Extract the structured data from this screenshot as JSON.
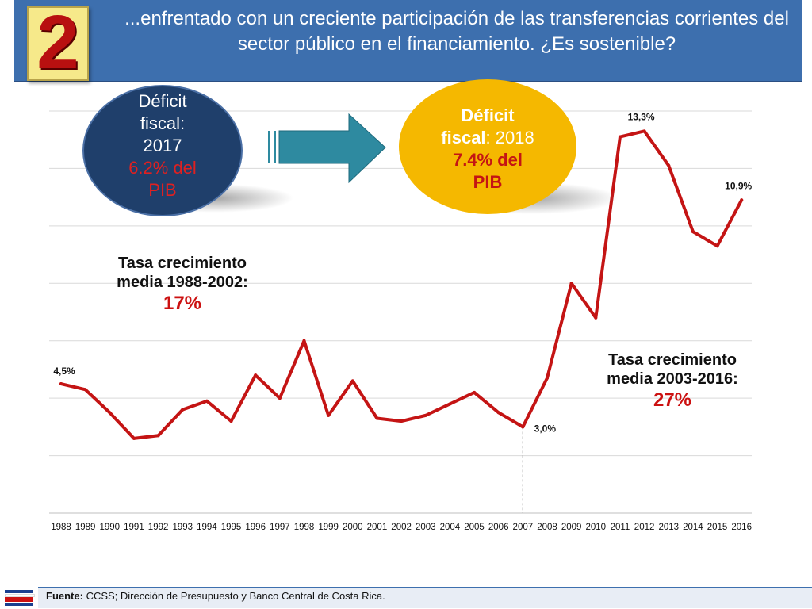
{
  "slide": {
    "badge_number": "2",
    "title": "...enfrentado con un creciente participación de las transferencias corrientes del sector público en el financiamiento.  ¿Es sostenible?",
    "footer_label": "Fuente:",
    "footer_text": " CCSS; Dirección de Presupuesto y Banco Central de Costa Rica."
  },
  "callouts": {
    "deficit_2017": {
      "line1": "Déficit",
      "line2": "fiscal:",
      "line3": "2017",
      "line4": "6.2% del",
      "line5": "PIB"
    },
    "deficit_2018": {
      "line1": "Déficit",
      "line2a": "fiscal",
      "line2b": ": 2018",
      "line3": "7.4% del",
      "line4": "PIB"
    },
    "growth_1": {
      "line1": "Tasa crecimiento",
      "line2": "media 1988-2002:",
      "line3": "17%"
    },
    "growth_2": {
      "line1": "Tasa crecimiento",
      "line2": "media 2003-2016:",
      "line3": "27%"
    }
  },
  "colors": {
    "line": "#c41414",
    "header": "#3d6fae",
    "bubble_dark": "#1f3f6b",
    "bubble_gold": "#f5b800",
    "arrow": "#2e8aa0"
  },
  "chart_data": {
    "type": "line",
    "x": [
      "1988",
      "1989",
      "1990",
      "1991",
      "1992",
      "1993",
      "1994",
      "1995",
      "1996",
      "1997",
      "1998",
      "1999",
      "2000",
      "2001",
      "2002",
      "2003",
      "2004",
      "2005",
      "2006",
      "2007",
      "2008",
      "2009",
      "2010",
      "2011",
      "2012",
      "2013",
      "2014",
      "2015",
      "2016"
    ],
    "series": [
      {
        "values": [
          4.5,
          4.3,
          3.5,
          2.6,
          2.7,
          3.6,
          3.9,
          3.2,
          4.8,
          4.0,
          6.0,
          3.4,
          4.6,
          3.3,
          3.2,
          3.4,
          3.8,
          4.2,
          3.5,
          3.0,
          4.7,
          8.0,
          6.8,
          13.1,
          13.3,
          12.1,
          9.8,
          9.3,
          10.9
        ]
      }
    ],
    "data_labels": [
      {
        "x": "1988",
        "text": "4,5%"
      },
      {
        "x": "2007",
        "text": "3,0%"
      },
      {
        "x": "2012",
        "text": "13,3%"
      },
      {
        "x": "2016",
        "text": "10,9%"
      }
    ],
    "ylim": [
      0,
      14
    ],
    "grid": true,
    "vertical_marker_x": "2007",
    "title": "",
    "xlabel": "",
    "ylabel": ""
  }
}
